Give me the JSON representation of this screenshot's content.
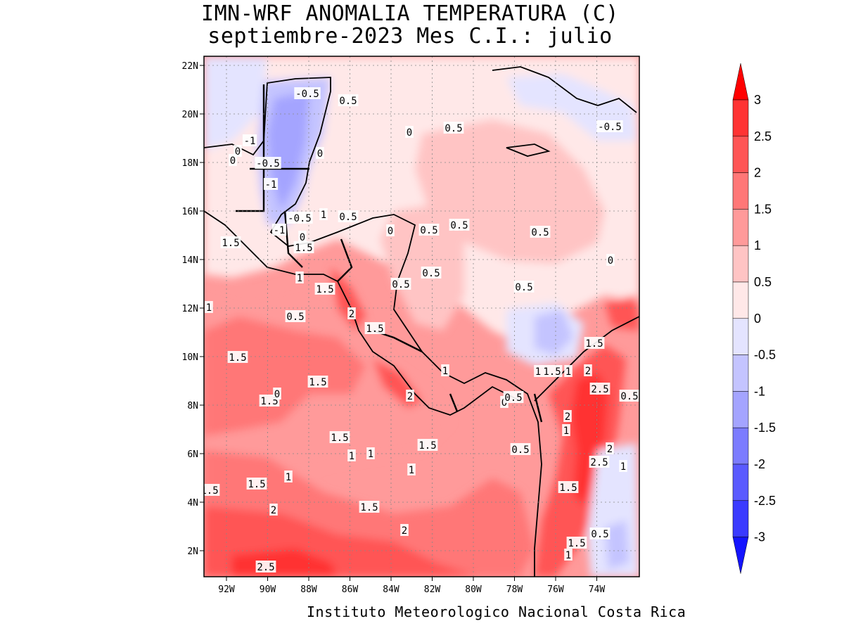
{
  "title": "IMN-WRF  ANOMALIA TEMPERATURA (C)",
  "subtitle": "septiembre-2023 Mes C.I.: julio",
  "footer": "Instituto Meteorologico Nacional Costa Rica",
  "axes": {
    "lon_ticks": [
      "92W",
      "90W",
      "88W",
      "86W",
      "84W",
      "82W",
      "80W",
      "78W",
      "76W",
      "74W"
    ],
    "lat_ticks": [
      "22N",
      "20N",
      "18N",
      "16N",
      "14N",
      "12N",
      "10N",
      "8N",
      "6N",
      "4N",
      "2N"
    ]
  },
  "colorbar": {
    "labels": [
      "3",
      "2.5",
      "2",
      "1.5",
      "1",
      "0.5",
      "0",
      "-0.5",
      "-1",
      "-1.5",
      "-2",
      "-2.5",
      "-3"
    ],
    "colors": [
      "#ff0000",
      "#ff3333",
      "#ff5555",
      "#ff7777",
      "#ff9a9a",
      "#ffc4c4",
      "#ffe8e8",
      "#e4e4ff",
      "#c4c4ff",
      "#a4a4ff",
      "#7c7cff",
      "#5a5aff",
      "#3a3aff",
      "#1414ff"
    ]
  },
  "contour_labels": [
    "-0.5",
    "0.5",
    "0",
    "-0.5",
    "0.5",
    "0",
    "-1",
    "0",
    "-0.5",
    "0",
    "-1",
    "-0.5",
    "1",
    "0.5",
    "-1",
    "0",
    "1.5",
    "1.5",
    "0",
    "0.5",
    "0.5",
    "0.5",
    "0.5",
    "0",
    "0.5",
    "0.5",
    "1",
    "1.5",
    "1",
    "2",
    "0.5",
    "1.5",
    "1.5",
    "1",
    "1.5",
    "1.5",
    "1.5",
    "2",
    "1",
    "1.5",
    "1",
    "0",
    "0",
    "0.5",
    "2",
    "1.5",
    "2.5",
    "0.5",
    "2",
    "1",
    "1.5",
    "1",
    "1",
    "0.5",
    "2",
    "2.5",
    "1",
    "1.5",
    "1.5",
    "1",
    "1",
    "1.5",
    "2",
    "2",
    "0.5",
    "1.5",
    "1",
    "2.5",
    "1.5"
  ]
}
